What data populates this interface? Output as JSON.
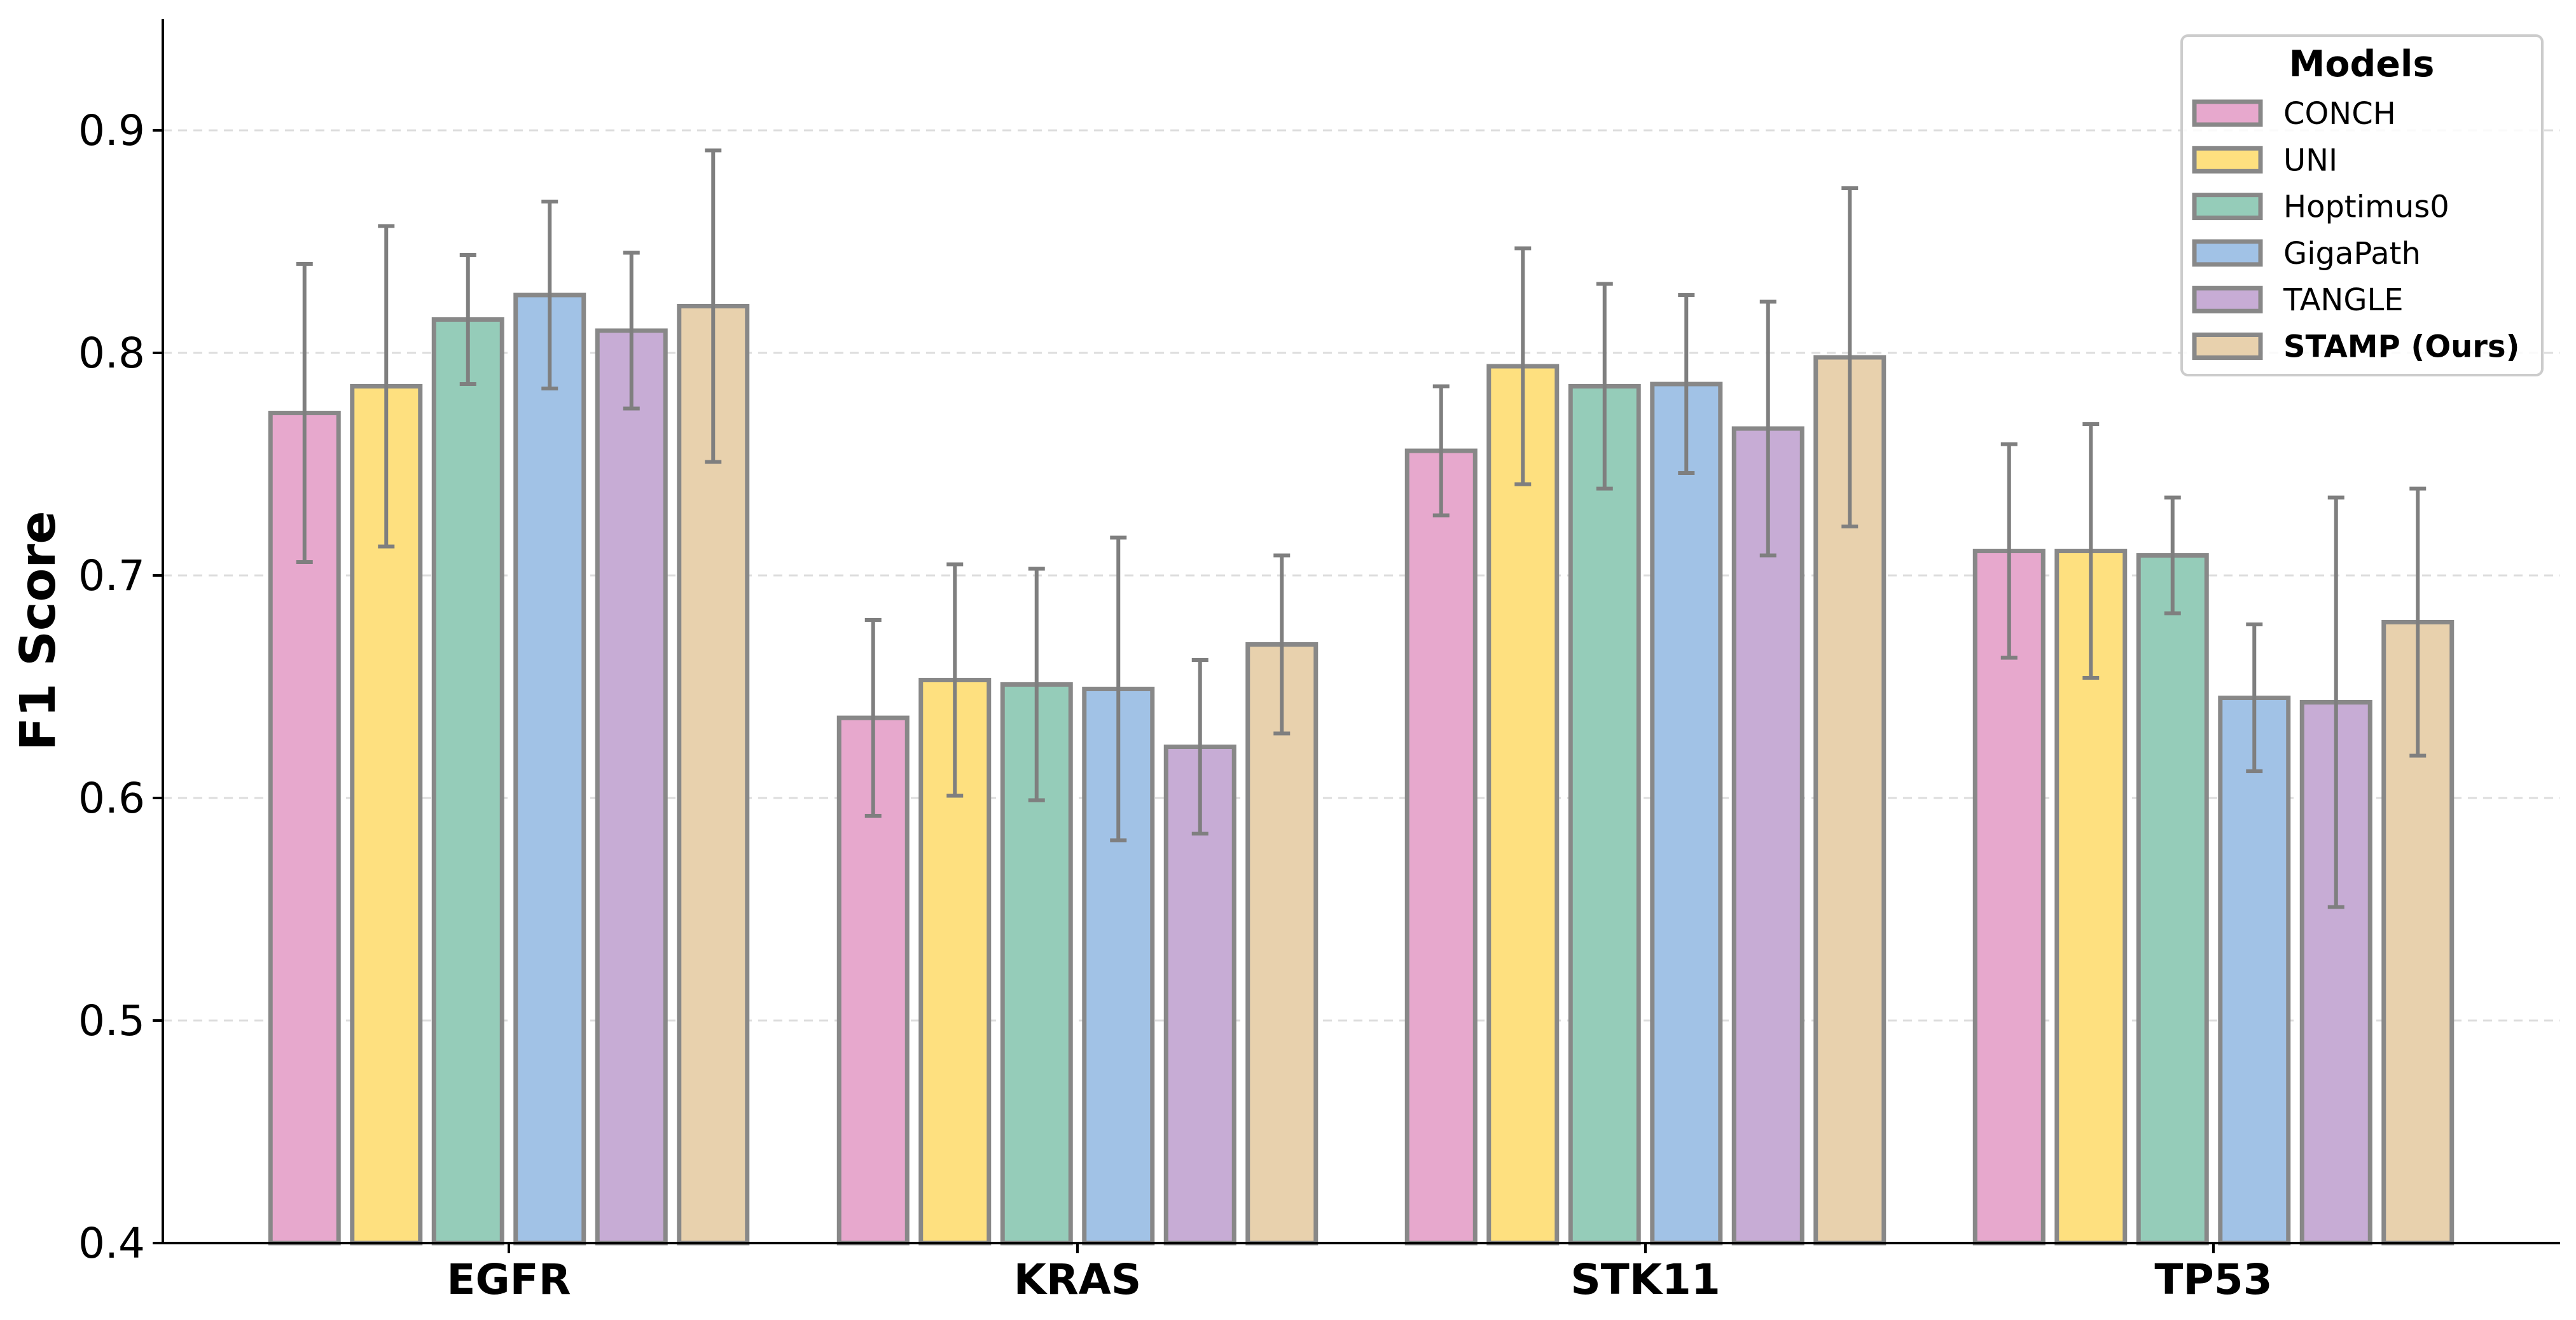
{
  "chart_data": {
    "type": "bar",
    "title": "",
    "xlabel": "",
    "ylabel": "F1 Score",
    "ylim": [
      0.4,
      0.95
    ],
    "yticks": [
      "0.4",
      "0.5",
      "0.6",
      "0.7",
      "0.8",
      "0.9"
    ],
    "categories": [
      "EGFR",
      "KRAS",
      "STK11",
      "TP53"
    ],
    "grid": "horizontal dashed",
    "legend": {
      "title": "Models",
      "placement": "top-right"
    },
    "series": [
      {
        "name": "CONCH",
        "color": "#e7a8cd",
        "values": [
          0.773,
          0.636,
          0.756,
          0.711
        ],
        "errors": [
          0.067,
          0.044,
          0.029,
          0.048
        ]
      },
      {
        "name": "UNI",
        "color": "#fee07f",
        "values": [
          0.785,
          0.653,
          0.794,
          0.711
        ],
        "errors": [
          0.072,
          0.052,
          0.053,
          0.057
        ]
      },
      {
        "name": "Hoptimus0",
        "color": "#95ccb9",
        "values": [
          0.815,
          0.651,
          0.785,
          0.709
        ],
        "errors": [
          0.029,
          0.052,
          0.046,
          0.026
        ]
      },
      {
        "name": "GigaPath",
        "color": "#a1c2e6",
        "values": [
          0.826,
          0.649,
          0.786,
          0.645
        ],
        "errors": [
          0.042,
          0.068,
          0.04,
          0.033
        ]
      },
      {
        "name": "TANGLE",
        "color": "#c7acd5",
        "values": [
          0.81,
          0.623,
          0.766,
          0.643
        ],
        "errors": [
          0.035,
          0.039,
          0.057,
          0.092
        ]
      },
      {
        "name": "STAMP (Ours)",
        "color": "#e8d1ad",
        "values": [
          0.821,
          0.669,
          0.798,
          0.679
        ],
        "errors": [
          0.07,
          0.04,
          0.076,
          0.06
        ],
        "bold": true
      }
    ],
    "bar_edge_color": "#888888",
    "error_color": "#7f7f7f"
  }
}
